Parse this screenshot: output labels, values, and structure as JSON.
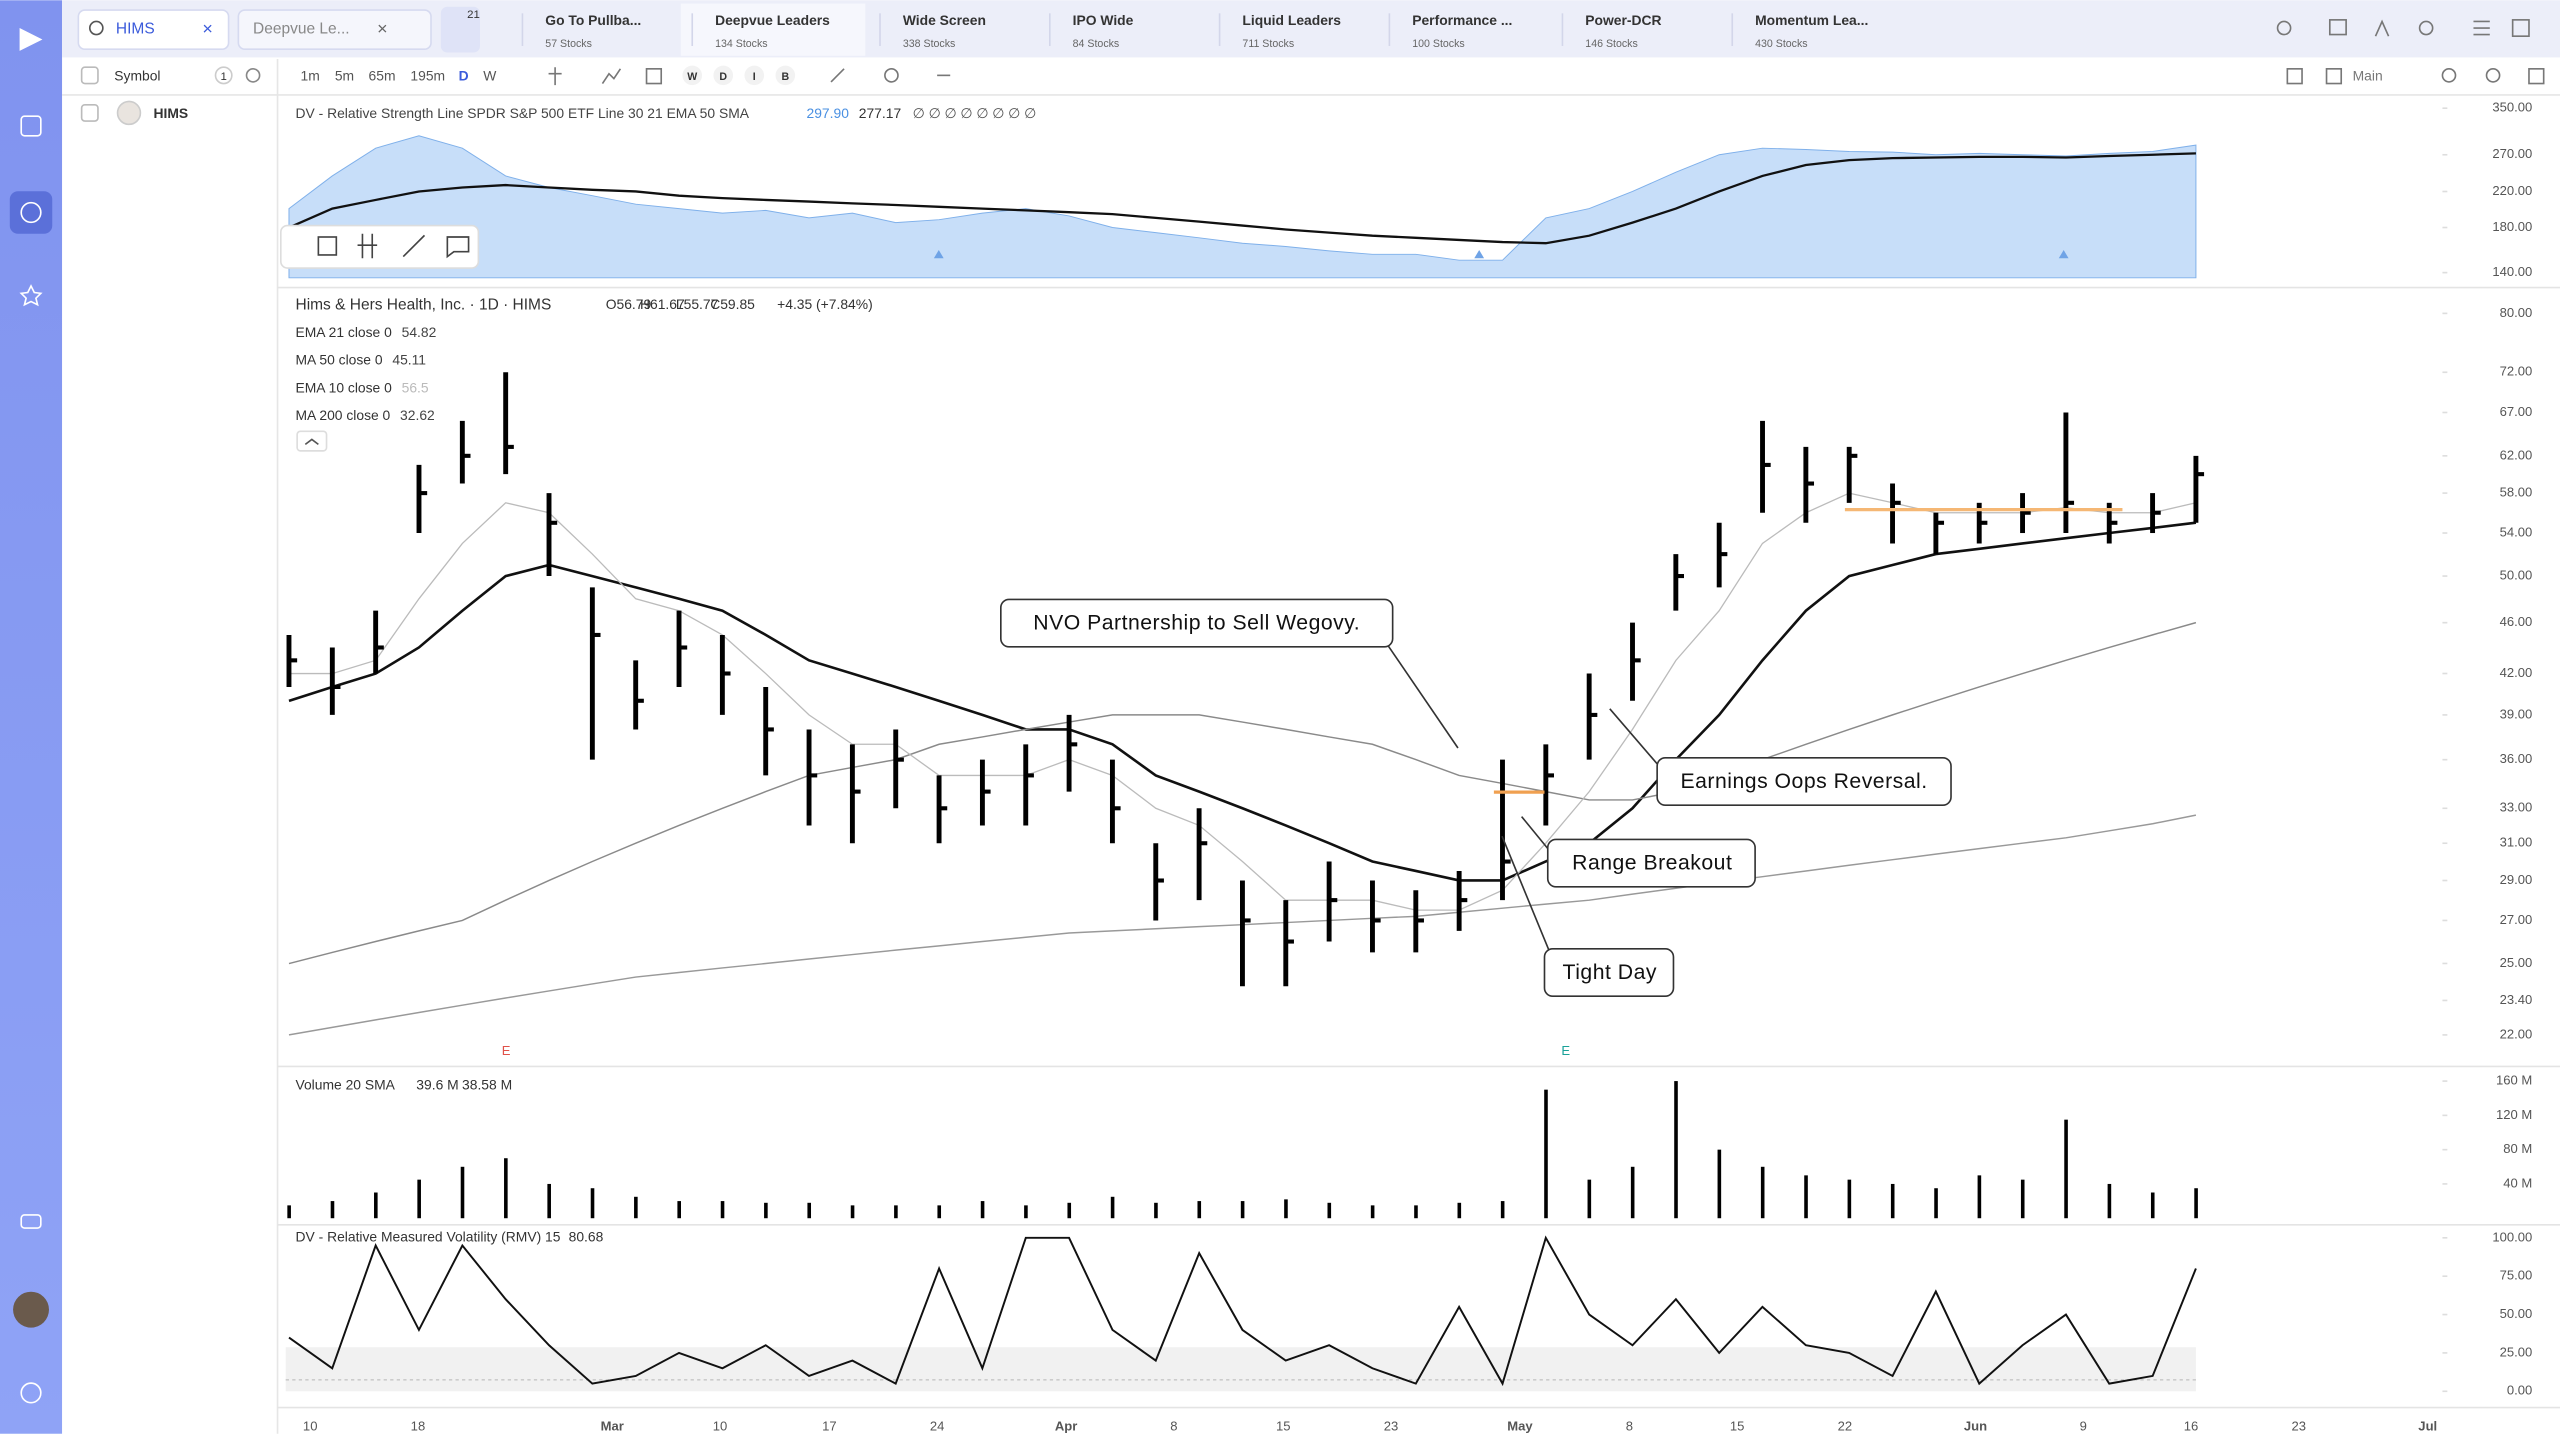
{
  "toolbar": {
    "search": "HIMS",
    "watchlist": "Deepvue Le...",
    "badge": "21",
    "tabs": [
      {
        "name": "Go To Pullba...",
        "count": "57 Stocks"
      },
      {
        "name": "Deepvue Leaders",
        "count": "134 Stocks"
      },
      {
        "name": "Wide Screen",
        "count": "338 Stocks"
      },
      {
        "name": "IPO Wide",
        "count": "84 Stocks"
      },
      {
        "name": "Liquid Leaders",
        "count": "711 Stocks"
      },
      {
        "name": "Performance ...",
        "count": "100 Stocks"
      },
      {
        "name": "Power-DCR",
        "count": "146 Stocks"
      },
      {
        "name": "Momentum Lea...",
        "count": "430 Stocks"
      }
    ]
  },
  "controls": {
    "symbol_label": "Symbol",
    "symbol_count": "1",
    "timeframes": [
      "1m",
      "5m",
      "65m",
      "195m",
      "D",
      "W"
    ],
    "bar_types": [
      "W",
      "D",
      "I",
      "B"
    ],
    "layout": "Main"
  },
  "watchlist": {
    "rows": [
      "HIMS"
    ]
  },
  "annotations": [
    "NVO Partnership to Sell Wegovy.",
    "Earnings Oops Reversal.",
    "Range Breakout",
    "Tight Day"
  ],
  "events": [
    "E",
    "E"
  ],
  "date_axis": [
    "10",
    "18",
    "Mar",
    "10",
    "17",
    "24",
    "Apr",
    "8",
    "15",
    "23",
    "May",
    "8",
    "15",
    "22",
    "Jun",
    "9",
    "16",
    "23",
    "Jul"
  ],
  "chart_data": [
    {
      "type": "area",
      "title": "DV - Relative Strength Line SPDR S&P 500 ETF Line 30 21 EMA 50 SMA",
      "symbols": "∅ ∅ ∅ ∅ ∅ ∅ ∅ ∅",
      "log_scale": true,
      "ylim": [
        136,
        370
      ],
      "yticks": [
        {
          "value": 350,
          "label": "350.00"
        },
        {
          "value": 270,
          "label": "270.00"
        },
        {
          "value": 220,
          "label": "220.00"
        },
        {
          "value": 180,
          "label": "180.00"
        },
        {
          "value": 140,
          "label": "140.00"
        }
      ],
      "series": [
        {
          "label": "297.90",
          "color": "#4a90e2",
          "values": [
            200,
            240,
            280,
            300,
            280,
            240,
            225,
            215,
            205,
            200,
            195,
            198,
            190,
            195,
            185,
            188,
            195,
            200,
            192,
            180,
            175,
            170,
            165,
            162,
            158,
            155,
            155,
            150,
            150,
            190,
            200,
            220,
            245,
            270,
            280,
            278,
            275,
            274,
            270,
            272,
            270,
            268,
            272,
            275,
            285
          ]
        },
        {
          "label": "277.17",
          "color": "#111111",
          "values": [
            180,
            200,
            210,
            220,
            225,
            228,
            225,
            222,
            220,
            215,
            212,
            210,
            208,
            206,
            204,
            202,
            200,
            198,
            196,
            194,
            190,
            186,
            182,
            178,
            175,
            172,
            170,
            168,
            166,
            165,
            172,
            185,
            200,
            220,
            240,
            255,
            262,
            265,
            266,
            267,
            267,
            266,
            268,
            270,
            272
          ]
        }
      ]
    },
    {
      "type": "ohlc",
      "title": "Hims & Hers Health, Inc. · 1D · HIMS",
      "ohlc_legend": [
        "O56.79",
        "H61.67",
        "L55.77",
        "C59.85"
      ],
      "change": "+4.35 (+7.84%)",
      "log_scale": true,
      "ylim": [
        21.6,
        82.8
      ],
      "yticks": [
        {
          "value": 80,
          "label": "80.00"
        },
        {
          "value": 72,
          "label": "72.00"
        },
        {
          "value": 67,
          "label": "67.00"
        },
        {
          "value": 62,
          "label": "62.00"
        },
        {
          "value": 58,
          "label": "58.00"
        },
        {
          "value": 54,
          "label": "54.00"
        },
        {
          "value": 50,
          "label": "50.00"
        },
        {
          "value": 46,
          "label": "46.00"
        },
        {
          "value": 42,
          "label": "42.00"
        },
        {
          "value": 39,
          "label": "39.00"
        },
        {
          "value": 36,
          "label": "36.00"
        },
        {
          "value": 33,
          "label": "33.00"
        },
        {
          "value": 31,
          "label": "31.00"
        },
        {
          "value": 29,
          "label": "29.00"
        },
        {
          "value": 27,
          "label": "27.00"
        },
        {
          "value": 25,
          "label": "25.00"
        },
        {
          "value": 23.4,
          "label": "23.40"
        },
        {
          "value": 22,
          "label": "22.00"
        }
      ],
      "high": [
        45,
        44,
        47,
        61,
        66,
        72,
        58,
        49,
        43,
        47,
        45,
        41,
        38,
        37,
        38,
        35,
        36,
        37,
        39,
        36,
        31,
        33,
        29,
        28,
        30,
        29,
        28.5,
        29.5,
        36,
        37,
        42,
        46,
        52,
        55,
        66,
        63,
        63,
        59,
        56,
        57,
        58,
        67,
        57,
        58,
        62
      ],
      "low": [
        41,
        39,
        42,
        54,
        59,
        60,
        50,
        36,
        38,
        41,
        39,
        35,
        32,
        31,
        33,
        31,
        32,
        32,
        34,
        31,
        27,
        28,
        24,
        24,
        26,
        25.5,
        25.5,
        26.5,
        28,
        32,
        36,
        40,
        47,
        49,
        56,
        55,
        57,
        53,
        52,
        53,
        54,
        54,
        53,
        54,
        55
      ],
      "close": [
        43,
        41,
        44,
        58,
        62,
        63,
        55,
        45,
        40,
        44,
        42,
        38,
        35,
        34,
        36,
        33,
        34,
        35,
        37,
        33,
        29,
        31,
        27,
        26,
        28,
        27,
        27,
        28,
        30,
        35,
        39,
        43,
        50,
        52,
        61,
        59,
        62,
        57,
        55,
        55,
        56,
        57,
        55,
        56,
        60
      ],
      "series": [
        {
          "name": "EMA 21 close 0",
          "value": "54.82",
          "color": "#111111",
          "width": 1.6,
          "values": [
            40,
            41,
            42,
            44,
            47,
            50,
            51,
            50,
            49,
            48,
            47,
            45,
            43,
            42,
            41,
            40,
            39,
            38,
            38,
            37,
            35,
            34,
            33,
            32,
            31,
            30,
            29.5,
            29,
            29,
            30,
            31,
            33,
            36,
            39,
            43,
            47,
            50,
            51,
            52,
            52.5,
            53,
            53.5,
            54,
            54.5,
            55
          ]
        },
        {
          "name": "MA 50 close 0",
          "value": "45.11",
          "color": "#8a8a8a",
          "width": 0.9,
          "values": [
            25,
            25.5,
            26,
            26.5,
            27,
            28,
            29,
            30,
            31,
            32,
            33,
            34,
            35,
            35.5,
            36,
            37,
            37.5,
            38,
            38.5,
            39,
            39,
            39,
            38.5,
            38,
            37.5,
            37,
            36,
            35,
            34.5,
            34,
            33.5,
            33.5,
            34,
            35,
            36,
            37,
            38,
            39,
            40,
            41,
            42,
            43,
            44,
            45,
            46
          ]
        },
        {
          "name": "EMA 10 close 0",
          "value": "56.5",
          "color": "#bbbbbb",
          "width": 0.8,
          "values": [
            42,
            42,
            43,
            48,
            53,
            57,
            56,
            52,
            48,
            47,
            45,
            42,
            39,
            37,
            37,
            35,
            35,
            35,
            36,
            35,
            33,
            32,
            30,
            28,
            28,
            28,
            27.5,
            27.5,
            28.5,
            31,
            34,
            38,
            43,
            47,
            53,
            56,
            58,
            57,
            56,
            56,
            56,
            56.5,
            56,
            56,
            57
          ]
        },
        {
          "name": "MA 200 close 0",
          "value": "32.62",
          "color": "#999999",
          "width": 0.9,
          "values": [
            22,
            22.3,
            22.6,
            22.9,
            23.2,
            23.5,
            23.8,
            24.1,
            24.4,
            24.6,
            24.8,
            25,
            25.2,
            25.4,
            25.6,
            25.8,
            26,
            26.2,
            26.4,
            26.5,
            26.6,
            26.7,
            26.8,
            26.9,
            27,
            27.1,
            27.2,
            27.4,
            27.6,
            27.8,
            28,
            28.3,
            28.6,
            28.9,
            29.2,
            29.5,
            29.8,
            30.1,
            30.4,
            30.7,
            31,
            31.3,
            31.7,
            32.1,
            32.6
          ]
        }
      ]
    },
    {
      "type": "bar",
      "title": "Volume 20 SMA",
      "legend_values": [
        "39.6 M",
        "38.58 M"
      ],
      "ylim": [
        0,
        160
      ],
      "yticks": [
        {
          "value": 160,
          "label": "160 M"
        },
        {
          "value": 120,
          "label": "120 M"
        },
        {
          "value": 80,
          "label": "80 M"
        },
        {
          "value": 40,
          "label": "40 M"
        }
      ],
      "values": [
        15,
        20,
        30,
        45,
        60,
        70,
        40,
        35,
        25,
        20,
        20,
        18,
        18,
        15,
        15,
        15,
        20,
        15,
        18,
        25,
        18,
        20,
        20,
        22,
        18,
        15,
        15,
        18,
        20,
        150,
        45,
        60,
        160,
        80,
        60,
        50,
        45,
        40,
        35,
        50,
        45,
        115,
        40,
        30,
        35
      ]
    },
    {
      "type": "line",
      "title": "DV - Relative Measured Volatility (RMV) 15",
      "legend_values": [
        "80.68"
      ],
      "ylim": [
        0,
        100
      ],
      "yticks": [
        {
          "value": 100,
          "label": "100.00"
        },
        {
          "value": 75,
          "label": "75.00"
        },
        {
          "value": 50,
          "label": "50.00"
        },
        {
          "value": 25,
          "label": "25.00"
        },
        {
          "value": 0,
          "label": "0.00"
        }
      ],
      "values": [
        35,
        15,
        95,
        40,
        95,
        60,
        30,
        5,
        10,
        25,
        15,
        30,
        10,
        20,
        5,
        80,
        15,
        100,
        100,
        40,
        20,
        90,
        40,
        20,
        30,
        15,
        5,
        55,
        5,
        100,
        50,
        30,
        60,
        25,
        55,
        30,
        25,
        10,
        65,
        5,
        30,
        50,
        5,
        10,
        80
      ]
    }
  ]
}
